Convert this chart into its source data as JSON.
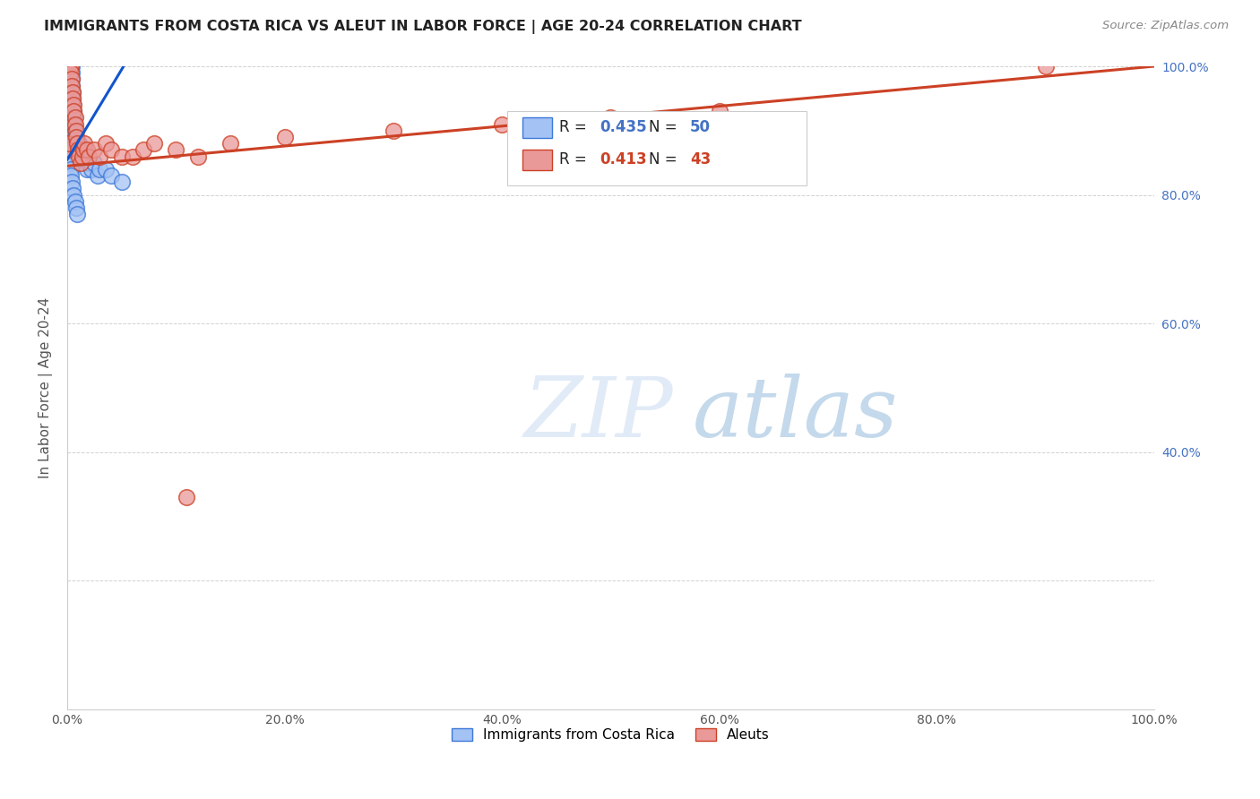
{
  "title": "IMMIGRANTS FROM COSTA RICA VS ALEUT IN LABOR FORCE | AGE 20-24 CORRELATION CHART",
  "source": "Source: ZipAtlas.com",
  "ylabel": "In Labor Force | Age 20-24",
  "xlim": [
    0.0,
    1.0
  ],
  "ylim": [
    0.0,
    1.0
  ],
  "xticks": [
    0.0,
    0.2,
    0.4,
    0.6,
    0.8,
    1.0
  ],
  "yticks": [
    0.0,
    0.2,
    0.4,
    0.6,
    0.8,
    1.0
  ],
  "xticklabels": [
    "0.0%",
    "20.0%",
    "40.0%",
    "60.0%",
    "80.0%",
    "100.0%"
  ],
  "left_yticklabels": [
    "",
    "",
    "",
    "",
    "",
    ""
  ],
  "right_yticks": [
    0.4,
    0.6,
    0.8,
    1.0
  ],
  "right_yticklabels": [
    "40.0%",
    "60.0%",
    "80.0%",
    "100.0%"
  ],
  "blue_color": "#a4c2f4",
  "blue_edge_color": "#3c78d8",
  "pink_color": "#ea9999",
  "pink_edge_color": "#cc4125",
  "blue_line_color": "#1155cc",
  "pink_line_color": "#cc4125",
  "legend_blue_label": "Immigrants from Costa Rica",
  "legend_pink_label": "Aleuts",
  "R_blue": 0.435,
  "N_blue": 50,
  "R_pink": 0.413,
  "N_pink": 43,
  "watermark_zip": "ZIP",
  "watermark_atlas": "atlas",
  "blue_scatter_x": [
    0.001,
    0.001,
    0.002,
    0.002,
    0.002,
    0.003,
    0.003,
    0.003,
    0.003,
    0.004,
    0.004,
    0.004,
    0.004,
    0.005,
    0.005,
    0.005,
    0.006,
    0.006,
    0.006,
    0.007,
    0.007,
    0.008,
    0.008,
    0.009,
    0.01,
    0.01,
    0.011,
    0.012,
    0.013,
    0.014,
    0.015,
    0.016,
    0.018,
    0.02,
    0.022,
    0.025,
    0.028,
    0.03,
    0.035,
    0.04,
    0.002,
    0.003,
    0.003,
    0.004,
    0.005,
    0.006,
    0.007,
    0.008,
    0.009,
    0.05
  ],
  "blue_scatter_y": [
    0.87,
    0.88,
    1.0,
    1.0,
    1.0,
    1.0,
    1.0,
    1.0,
    1.0,
    1.0,
    0.99,
    0.98,
    0.97,
    0.96,
    0.95,
    0.94,
    0.93,
    0.92,
    0.91,
    0.9,
    0.89,
    0.88,
    0.87,
    0.86,
    0.87,
    0.86,
    0.88,
    0.87,
    0.87,
    0.86,
    0.86,
    0.87,
    0.84,
    0.85,
    0.84,
    0.85,
    0.83,
    0.84,
    0.84,
    0.83,
    0.85,
    0.84,
    0.83,
    0.82,
    0.81,
    0.8,
    0.79,
    0.78,
    0.77,
    0.82
  ],
  "pink_scatter_x": [
    0.001,
    0.001,
    0.002,
    0.002,
    0.003,
    0.003,
    0.004,
    0.004,
    0.005,
    0.005,
    0.006,
    0.006,
    0.007,
    0.007,
    0.008,
    0.008,
    0.009,
    0.01,
    0.011,
    0.012,
    0.014,
    0.015,
    0.016,
    0.018,
    0.02,
    0.025,
    0.03,
    0.035,
    0.04,
    0.05,
    0.06,
    0.07,
    0.08,
    0.1,
    0.12,
    0.15,
    0.2,
    0.3,
    0.4,
    0.5,
    0.6,
    0.9,
    0.11
  ],
  "pink_scatter_y": [
    0.87,
    0.88,
    1.0,
    1.0,
    1.0,
    0.99,
    0.98,
    0.97,
    0.96,
    0.95,
    0.94,
    0.93,
    0.92,
    0.91,
    0.9,
    0.89,
    0.88,
    0.87,
    0.86,
    0.85,
    0.86,
    0.87,
    0.88,
    0.87,
    0.86,
    0.87,
    0.86,
    0.88,
    0.87,
    0.86,
    0.86,
    0.87,
    0.88,
    0.87,
    0.86,
    0.88,
    0.89,
    0.9,
    0.91,
    0.92,
    0.93,
    1.0,
    0.33
  ],
  "background_color": "#ffffff",
  "grid_color": "#cccccc"
}
